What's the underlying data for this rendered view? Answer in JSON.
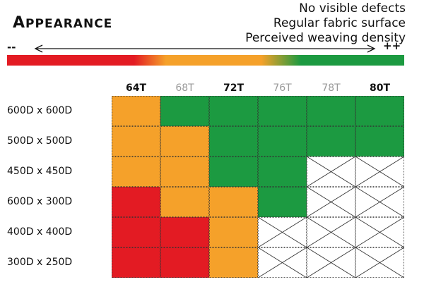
{
  "header": {
    "title_first": "A",
    "title_rest": "PPEARANCE",
    "criteria": [
      "No visible defects",
      "Regular fabric surface",
      "Perceived weaving density"
    ]
  },
  "scale": {
    "low": "--",
    "high": "++"
  },
  "colors": {
    "red": "#e31b23",
    "orange": "#f5a12a",
    "green": "#1c9a41"
  },
  "columns": [
    {
      "label": "64T",
      "highlight": true
    },
    {
      "label": "68T",
      "highlight": false
    },
    {
      "label": "72T",
      "highlight": true
    },
    {
      "label": "76T",
      "highlight": false
    },
    {
      "label": "78T",
      "highlight": false
    },
    {
      "label": "80T",
      "highlight": true
    }
  ],
  "rows": [
    {
      "label": "600D x 600D",
      "cells": [
        "orange",
        "green",
        "green",
        "green",
        "green",
        "green"
      ]
    },
    {
      "label": "500D x 500D",
      "cells": [
        "orange",
        "orange",
        "green",
        "green",
        "green",
        "green"
      ]
    },
    {
      "label": "450D x 450D",
      "cells": [
        "orange",
        "orange",
        "green",
        "green",
        "none",
        "none"
      ]
    },
    {
      "label": "600D x 300D",
      "cells": [
        "red",
        "orange",
        "orange",
        "green",
        "none",
        "none"
      ]
    },
    {
      "label": "400D x 400D",
      "cells": [
        "red",
        "red",
        "orange",
        "none",
        "none",
        "none"
      ]
    },
    {
      "label": "300D x 250D",
      "cells": [
        "red",
        "red",
        "orange",
        "none",
        "none",
        "none"
      ]
    }
  ]
}
